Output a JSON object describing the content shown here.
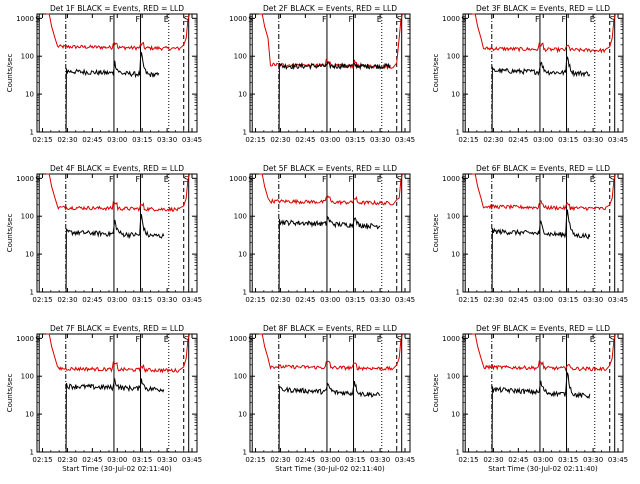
{
  "colors": {
    "events": "#000000",
    "lld": "#dd0000",
    "axes": "#000000",
    "markers": "#000000"
  },
  "chart_data": [
    {
      "type": "line",
      "title": "Det 1F BLACK = Events, RED = LLD",
      "xlabel": "",
      "ylabel": "Counts/sec",
      "row": 0,
      "col": 0
    },
    {
      "type": "line",
      "title": "Det 2F BLACK = Events, RED = LLD",
      "xlabel": "",
      "ylabel": "",
      "row": 0,
      "col": 1
    },
    {
      "type": "line",
      "title": "Det 3F BLACK = Events, RED = LLD",
      "xlabel": "",
      "ylabel": "Counts/sec",
      "row": 0,
      "col": 2
    },
    {
      "type": "line",
      "title": "Det 4F BLACK = Events, RED = LLD",
      "xlabel": "",
      "ylabel": "Counts/sec",
      "row": 1,
      "col": 0
    },
    {
      "type": "line",
      "title": "Det 5F BLACK = Events, RED = LLD",
      "xlabel": "",
      "ylabel": "",
      "row": 1,
      "col": 1
    },
    {
      "type": "line",
      "title": "Det 6F BLACK = Events, RED = LLD",
      "xlabel": "",
      "ylabel": "Counts/sec",
      "row": 1,
      "col": 2
    },
    {
      "type": "line",
      "title": "Det 7F BLACK = Events, RED = LLD",
      "xlabel": "Start Time (30-Jul-02 02:11:40)",
      "ylabel": "Counts/sec",
      "row": 2,
      "col": 0
    },
    {
      "type": "line",
      "title": "Det 8F BLACK = Events, RED = LLD",
      "xlabel": "Start Time (30-Jul-02 02:11:40)",
      "ylabel": "",
      "row": 2,
      "col": 1
    },
    {
      "type": "line",
      "title": "Det 9F BLACK = Events, RED = LLD",
      "xlabel": "Start Time (30-Jul-02 02:11:40)",
      "ylabel": "Counts/sec",
      "row": 2,
      "col": 2
    }
  ],
  "shared": {
    "x_tick_labels": [
      "02:15",
      "02:30",
      "02:45",
      "03:00",
      "03:15",
      "03:30",
      "03:45"
    ],
    "x_tick_values_min": [
      15,
      30,
      45,
      60,
      75,
      90,
      105
    ],
    "x_range_min": [
      11.67,
      108
    ],
    "y_tick_labels": [
      "1",
      "10",
      "100",
      "1000"
    ],
    "y_tick_values": [
      1,
      10,
      100,
      1000
    ],
    "y_range": [
      1,
      1300
    ],
    "y_scale": "log",
    "marker_labels": [
      "S",
      "F",
      "F",
      "E",
      "S"
    ],
    "marker_times_min": [
      13,
      58,
      74,
      91,
      103
    ],
    "marker_style": [
      "solid",
      "solid",
      "solid",
      "dotted",
      "solid"
    ],
    "dashdot_time_min": 29,
    "dashed_time_min": 100
  },
  "panel_x_tick_labels": [
    [
      "02:15",
      "02:30",
      "02:45",
      "03:00",
      "03:15",
      "03:30",
      "03:45"
    ],
    [
      "02:15",
      "02:30",
      "02:45",
      "03:00",
      "03:15",
      "03:30",
      "03:45"
    ],
    [
      "02:15",
      "02:30",
      "02:45",
      "03:00",
      "03:15",
      "03:30",
      "03:45"
    ],
    [
      "02:15",
      "02:30",
      "02:45",
      "03:00",
      "03:15",
      "03:30",
      "03:45"
    ],
    [
      "02:15",
      "02:30",
      "02:45",
      "03:00",
      "03:15",
      "03:30",
      "03:45"
    ],
    [
      "02:15",
      "02:30",
      "02:45",
      "03:00",
      "03:15",
      "03:30",
      "03:45"
    ],
    [
      "02:15",
      "02:30",
      "02:45",
      "03:00",
      "03:15",
      "03:30",
      "03:45"
    ],
    [
      "02:15",
      "02:30",
      "02:45",
      "03:00",
      "03:15",
      "03:30",
      "03:45"
    ],
    [
      "02:15",
      "02:30",
      "02:45",
      "03:00",
      "03:15",
      "03:30",
      "03:45"
    ]
  ],
  "panel_profiles": [
    {
      "lld_base": 180,
      "ev_base": 40,
      "ev_end": 32,
      "peak1": 70,
      "peak2": 120,
      "ev_end_min": 85
    },
    {
      "lld_base": 60,
      "ev_base": 55,
      "ev_end": 55,
      "peak1": 60,
      "peak2": 60,
      "ev_end_min": 96
    },
    {
      "lld_base": 160,
      "ev_base": 42,
      "ev_end": 35,
      "peak1": 75,
      "peak2": 110,
      "ev_end_min": 88
    },
    {
      "lld_base": 170,
      "ev_base": 38,
      "ev_end": 30,
      "peak1": 75,
      "peak2": 110,
      "ev_end_min": 88
    },
    {
      "lld_base": 250,
      "ev_base": 70,
      "ev_end": 55,
      "peak1": 95,
      "peak2": 100,
      "ev_end_min": 90
    },
    {
      "lld_base": 180,
      "ev_base": 40,
      "ev_end": 30,
      "peak1": 70,
      "peak2": 160,
      "ev_end_min": 88
    },
    {
      "lld_base": 160,
      "ev_base": 55,
      "ev_end": 45,
      "peak1": 80,
      "peak2": 90,
      "ev_end_min": 88
    },
    {
      "lld_base": 180,
      "ev_base": 45,
      "ev_end": 32,
      "peak1": 65,
      "peak2": 80,
      "ev_end_min": 90
    },
    {
      "lld_base": 175,
      "ev_base": 45,
      "ev_end": 30,
      "peak1": 70,
      "peak2": 140,
      "ev_end_min": 88
    }
  ]
}
